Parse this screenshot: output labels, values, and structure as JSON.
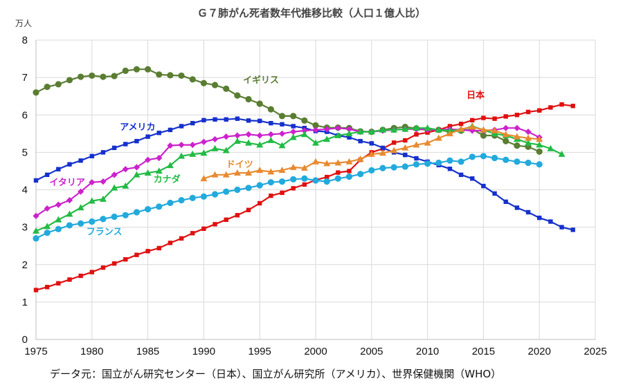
{
  "chart_data": {
    "type": "line",
    "title": "Ｇ７肺がん死者数年代推移比較（人口１億人比）",
    "unit": "万人",
    "source": "データ元：国立がん研究センター（日本）、国立がん研究所（アメリカ）、世界保健機関（WHO）",
    "xlim": [
      1975,
      2025
    ],
    "ylim": [
      0,
      8
    ],
    "x_ticks": [
      1975,
      1980,
      1985,
      1990,
      1995,
      2000,
      2005,
      2010,
      2015,
      2020,
      2025
    ],
    "y_ticks": [
      0,
      1,
      2,
      3,
      4,
      5,
      6,
      7,
      8
    ],
    "grid": true,
    "series": [
      {
        "name": "イギリス",
        "color": "#5a7d32",
        "marker": "circle",
        "x": [
          1975,
          1976,
          1977,
          1978,
          1979,
          1980,
          1981,
          1982,
          1983,
          1984,
          1985,
          1986,
          1987,
          1988,
          1989,
          1990,
          1991,
          1992,
          1993,
          1994,
          1995,
          1996,
          1997,
          1998,
          1999,
          2000,
          2001,
          2002,
          2003,
          2004,
          2005,
          2006,
          2007,
          2008,
          2009,
          2010,
          2011,
          2012,
          2013,
          2014,
          2015,
          2016,
          2017,
          2018,
          2019,
          2020
        ],
        "values": [
          6.6,
          6.75,
          6.82,
          6.93,
          7.02,
          7.05,
          7.02,
          7.04,
          7.18,
          7.22,
          7.22,
          7.08,
          7.06,
          7.05,
          6.95,
          6.85,
          6.8,
          6.7,
          6.52,
          6.42,
          6.3,
          6.15,
          5.97,
          5.97,
          5.85,
          5.72,
          5.66,
          5.66,
          5.65,
          5.56,
          5.55,
          5.6,
          5.65,
          5.68,
          5.64,
          5.6,
          5.6,
          5.55,
          5.58,
          5.62,
          5.45,
          5.45,
          5.3,
          5.18,
          5.15,
          5.02
        ]
      },
      {
        "name": "日本",
        "color": "#e01010",
        "marker": "square",
        "x": [
          1975,
          1976,
          1977,
          1978,
          1979,
          1980,
          1981,
          1982,
          1983,
          1984,
          1985,
          1986,
          1987,
          1988,
          1989,
          1990,
          1991,
          1992,
          1993,
          1994,
          1995,
          1996,
          1997,
          1998,
          1999,
          2000,
          2001,
          2002,
          2003,
          2004,
          2005,
          2006,
          2007,
          2008,
          2009,
          2010,
          2011,
          2012,
          2013,
          2014,
          2015,
          2016,
          2017,
          2018,
          2019,
          2020,
          2021,
          2022,
          2023
        ],
        "values": [
          1.32,
          1.4,
          1.5,
          1.6,
          1.7,
          1.8,
          1.92,
          2.03,
          2.14,
          2.26,
          2.36,
          2.44,
          2.58,
          2.7,
          2.84,
          2.96,
          3.08,
          3.2,
          3.32,
          3.46,
          3.64,
          3.84,
          3.92,
          4.04,
          4.14,
          4.26,
          4.34,
          4.46,
          4.5,
          4.8,
          5.0,
          5.1,
          5.26,
          5.32,
          5.48,
          5.53,
          5.6,
          5.7,
          5.76,
          5.86,
          5.92,
          5.9,
          5.96,
          6.0,
          6.08,
          6.12,
          6.2,
          6.28,
          6.24
        ]
      },
      {
        "name": "アメリカ",
        "color": "#1530cc",
        "marker": "square",
        "x": [
          1975,
          1976,
          1977,
          1978,
          1979,
          1980,
          1981,
          1982,
          1983,
          1984,
          1985,
          1986,
          1987,
          1988,
          1989,
          1990,
          1991,
          1992,
          1993,
          1994,
          1995,
          1996,
          1997,
          1998,
          1999,
          2000,
          2001,
          2002,
          2003,
          2004,
          2005,
          2006,
          2007,
          2008,
          2009,
          2010,
          2011,
          2012,
          2013,
          2014,
          2015,
          2016,
          2017,
          2018,
          2019,
          2020,
          2021,
          2022,
          2023
        ],
        "values": [
          4.25,
          4.4,
          4.55,
          4.68,
          4.78,
          4.9,
          5.0,
          5.12,
          5.22,
          5.3,
          5.42,
          5.52,
          5.6,
          5.7,
          5.78,
          5.86,
          5.88,
          5.88,
          5.9,
          5.85,
          5.84,
          5.78,
          5.75,
          5.7,
          5.65,
          5.57,
          5.55,
          5.45,
          5.4,
          5.3,
          5.24,
          5.12,
          5.0,
          4.93,
          4.84,
          4.75,
          4.66,
          4.56,
          4.4,
          4.3,
          4.1,
          3.9,
          3.68,
          3.52,
          3.4,
          3.25,
          3.15,
          3.0,
          2.93
        ]
      },
      {
        "name": "イタリア",
        "color": "#cc22cc",
        "marker": "diamond",
        "x": [
          1975,
          1976,
          1977,
          1978,
          1979,
          1980,
          1981,
          1982,
          1983,
          1984,
          1985,
          1986,
          1987,
          1988,
          1989,
          1990,
          1991,
          1992,
          1993,
          1994,
          1995,
          1996,
          1997,
          1998,
          1999,
          2000,
          2001,
          2002,
          2003,
          2004,
          2005,
          2006,
          2007,
          2008,
          2009,
          2010,
          2011,
          2012,
          2013,
          2014,
          2015,
          2016,
          2017,
          2018,
          2019,
          2020
        ],
        "values": [
          3.3,
          3.5,
          3.6,
          3.72,
          3.95,
          4.2,
          4.22,
          4.4,
          4.55,
          4.6,
          4.8,
          4.85,
          5.18,
          5.2,
          5.2,
          5.28,
          5.35,
          5.42,
          5.45,
          5.48,
          5.45,
          5.48,
          5.5,
          5.55,
          5.58,
          5.6,
          5.62,
          5.65,
          5.62,
          5.55,
          5.55,
          5.58,
          5.6,
          5.62,
          5.62,
          5.6,
          5.6,
          5.62,
          5.6,
          5.58,
          5.58,
          5.6,
          5.65,
          5.65,
          5.55,
          5.4
        ]
      },
      {
        "name": "カナダ",
        "color": "#22bb44",
        "marker": "triangle",
        "x": [
          1975,
          1976,
          1977,
          1978,
          1979,
          1980,
          1981,
          1982,
          1983,
          1984,
          1985,
          1986,
          1987,
          1988,
          1989,
          1990,
          1991,
          1992,
          1993,
          1994,
          1995,
          1996,
          1997,
          1998,
          1999,
          2000,
          2001,
          2002,
          2003,
          2004,
          2005,
          2006,
          2007,
          2008,
          2009,
          2010,
          2011,
          2012,
          2013,
          2014,
          2015,
          2016,
          2017,
          2018,
          2019,
          2020,
          2021,
          2022
        ],
        "values": [
          2.9,
          3.02,
          3.2,
          3.35,
          3.52,
          3.7,
          3.75,
          4.05,
          4.1,
          4.4,
          4.45,
          4.5,
          4.65,
          4.9,
          4.95,
          4.98,
          5.1,
          5.05,
          5.3,
          5.25,
          5.2,
          5.32,
          5.18,
          5.4,
          5.48,
          5.25,
          5.35,
          5.45,
          5.5,
          5.55,
          5.55,
          5.6,
          5.6,
          5.62,
          5.65,
          5.65,
          5.6,
          5.58,
          5.6,
          5.7,
          5.6,
          5.5,
          5.45,
          5.35,
          5.25,
          5.2,
          5.1,
          4.95
        ]
      },
      {
        "name": "ドイツ",
        "color": "#e88a30",
        "marker": "triangle",
        "x": [
          1990,
          1991,
          1992,
          1993,
          1994,
          1995,
          1996,
          1997,
          1998,
          1999,
          2000,
          2001,
          2002,
          2003,
          2004,
          2005,
          2006,
          2007,
          2008,
          2009,
          2010,
          2011,
          2012,
          2013,
          2014,
          2015,
          2016,
          2017,
          2018,
          2019,
          2020
        ],
        "values": [
          4.3,
          4.4,
          4.4,
          4.45,
          4.45,
          4.52,
          4.48,
          4.52,
          4.6,
          4.58,
          4.75,
          4.7,
          4.72,
          4.75,
          4.82,
          4.95,
          4.98,
          5.05,
          5.12,
          5.2,
          5.25,
          5.38,
          5.5,
          5.62,
          5.68,
          5.6,
          5.58,
          5.48,
          5.42,
          5.38,
          5.35
        ]
      },
      {
        "name": "フランス",
        "color": "#22aadd",
        "marker": "circle",
        "x": [
          1975,
          1976,
          1977,
          1978,
          1979,
          1980,
          1981,
          1982,
          1983,
          1984,
          1985,
          1986,
          1987,
          1988,
          1989,
          1990,
          1991,
          1992,
          1993,
          1994,
          1995,
          1996,
          1997,
          1998,
          1999,
          2000,
          2001,
          2002,
          2003,
          2004,
          2005,
          2006,
          2007,
          2008,
          2009,
          2010,
          2011,
          2012,
          2013,
          2014,
          2015,
          2016,
          2017,
          2018,
          2019,
          2020
        ],
        "values": [
          2.7,
          2.85,
          2.95,
          3.05,
          3.1,
          3.15,
          3.22,
          3.28,
          3.32,
          3.4,
          3.48,
          3.55,
          3.65,
          3.72,
          3.78,
          3.82,
          3.88,
          3.95,
          4.0,
          4.05,
          4.12,
          4.2,
          4.22,
          4.28,
          4.3,
          4.25,
          4.22,
          4.3,
          4.35,
          4.42,
          4.52,
          4.58,
          4.6,
          4.62,
          4.68,
          4.7,
          4.72,
          4.78,
          4.75,
          4.88,
          4.9,
          4.85,
          4.8,
          4.75,
          4.72,
          4.68
        ]
      }
    ],
    "series_labels": [
      "イギリス",
      "日本",
      "アメリカ",
      "イタリア",
      "カナダ",
      "ドイツ",
      "フランス"
    ]
  }
}
